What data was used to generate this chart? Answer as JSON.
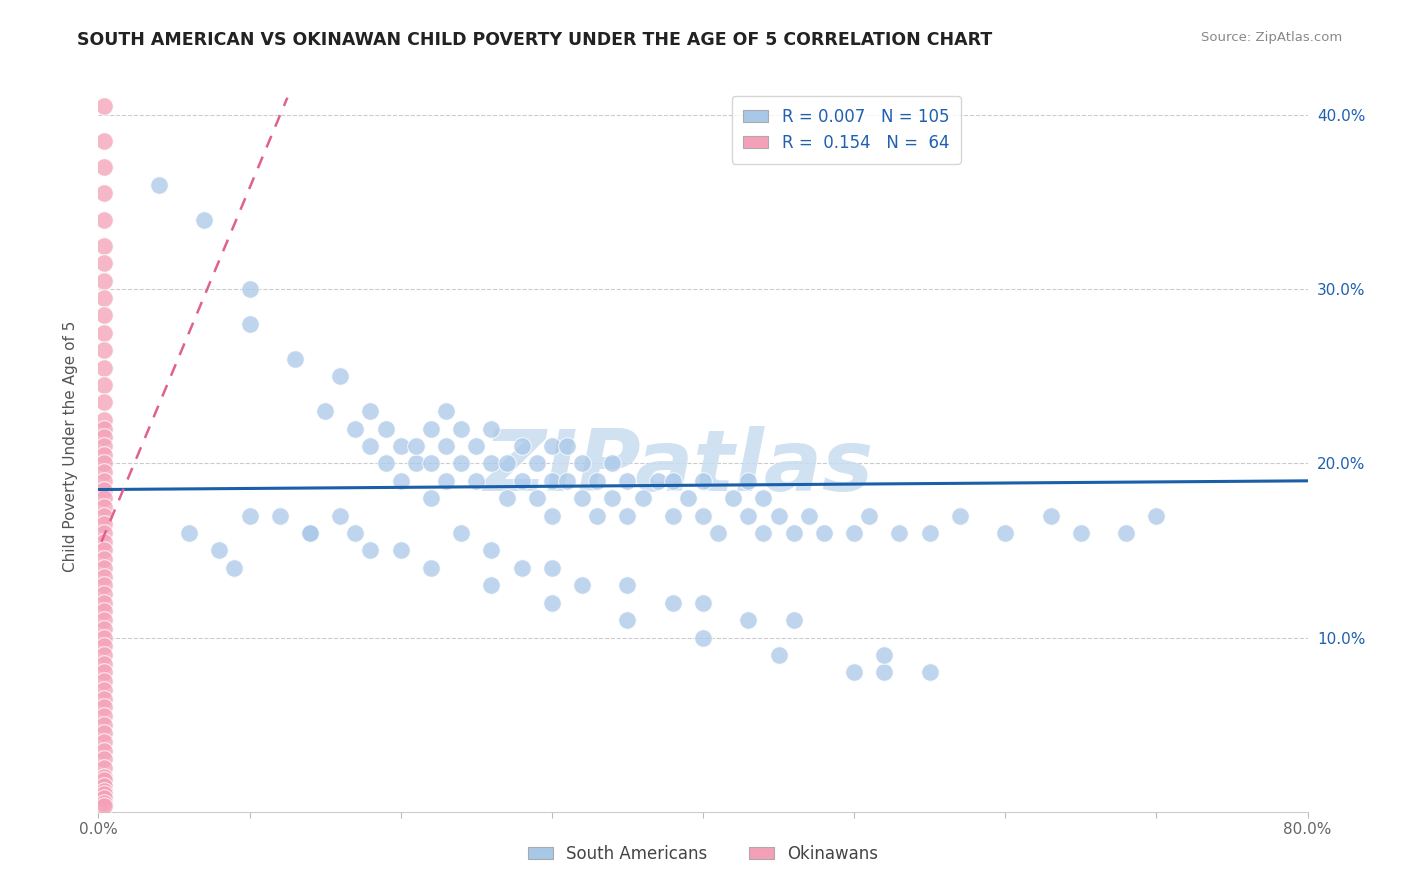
{
  "title": "SOUTH AMERICAN VS OKINAWAN CHILD POVERTY UNDER THE AGE OF 5 CORRELATION CHART",
  "source": "Source: ZipAtlas.com",
  "ylabel": "Child Poverty Under the Age of 5",
  "xlim": [
    0.0,
    0.8
  ],
  "ylim": [
    0.0,
    0.42
  ],
  "xtick_vals": [
    0.0,
    0.1,
    0.2,
    0.3,
    0.4,
    0.5,
    0.6,
    0.7,
    0.8
  ],
  "xtick_labels": [
    "0.0%",
    "",
    "",
    "",
    "",
    "",
    "",
    "",
    "80.0%"
  ],
  "ytick_vals": [
    0.0,
    0.1,
    0.2,
    0.3,
    0.4
  ],
  "ytick_labels_right": [
    "",
    "10.0%",
    "20.0%",
    "30.0%",
    "40.0%"
  ],
  "legend_r_blue": "0.007",
  "legend_n_blue": "105",
  "legend_r_pink": "0.154",
  "legend_n_pink": "64",
  "blue_color": "#a8c8e8",
  "pink_color": "#f4a0b8",
  "trend_blue_color": "#1a5fa8",
  "trend_pink_color": "#e06090",
  "legend_text_color": "#2060b0",
  "watermark_color": "#c8ddf0",
  "watermark_text": "ZIPatlas",
  "background_color": "#ffffff",
  "grid_color": "#cccccc",
  "blue_x": [
    0.04,
    0.07,
    0.1,
    0.1,
    0.13,
    0.15,
    0.16,
    0.17,
    0.18,
    0.18,
    0.19,
    0.19,
    0.2,
    0.2,
    0.21,
    0.21,
    0.22,
    0.22,
    0.22,
    0.23,
    0.23,
    0.23,
    0.24,
    0.24,
    0.25,
    0.25,
    0.26,
    0.26,
    0.27,
    0.27,
    0.28,
    0.28,
    0.29,
    0.29,
    0.3,
    0.3,
    0.3,
    0.31,
    0.31,
    0.32,
    0.32,
    0.33,
    0.33,
    0.34,
    0.34,
    0.35,
    0.35,
    0.36,
    0.37,
    0.38,
    0.38,
    0.39,
    0.4,
    0.4,
    0.41,
    0.42,
    0.43,
    0.43,
    0.44,
    0.44,
    0.45,
    0.46,
    0.47,
    0.48,
    0.5,
    0.51,
    0.52,
    0.53,
    0.55,
    0.57,
    0.6,
    0.63,
    0.65,
    0.68,
    0.7,
    0.06,
    0.08,
    0.09,
    0.12,
    0.14,
    0.16,
    0.17,
    0.2,
    0.24,
    0.26,
    0.28,
    0.3,
    0.32,
    0.35,
    0.38,
    0.4,
    0.43,
    0.46,
    0.5,
    0.52,
    0.55,
    0.1,
    0.14,
    0.18,
    0.22,
    0.26,
    0.3,
    0.35,
    0.4,
    0.45
  ],
  "blue_y": [
    0.36,
    0.34,
    0.28,
    0.3,
    0.26,
    0.23,
    0.25,
    0.22,
    0.21,
    0.23,
    0.2,
    0.22,
    0.19,
    0.21,
    0.2,
    0.21,
    0.18,
    0.2,
    0.22,
    0.19,
    0.21,
    0.23,
    0.2,
    0.22,
    0.19,
    0.21,
    0.2,
    0.22,
    0.18,
    0.2,
    0.19,
    0.21,
    0.18,
    0.2,
    0.19,
    0.21,
    0.17,
    0.19,
    0.21,
    0.18,
    0.2,
    0.19,
    0.17,
    0.18,
    0.2,
    0.17,
    0.19,
    0.18,
    0.19,
    0.17,
    0.19,
    0.18,
    0.17,
    0.19,
    0.16,
    0.18,
    0.17,
    0.19,
    0.16,
    0.18,
    0.17,
    0.16,
    0.17,
    0.16,
    0.16,
    0.17,
    0.08,
    0.16,
    0.16,
    0.17,
    0.16,
    0.17,
    0.16,
    0.16,
    0.17,
    0.16,
    0.15,
    0.14,
    0.17,
    0.16,
    0.17,
    0.16,
    0.15,
    0.16,
    0.15,
    0.14,
    0.14,
    0.13,
    0.13,
    0.12,
    0.12,
    0.11,
    0.11,
    0.08,
    0.09,
    0.08,
    0.17,
    0.16,
    0.15,
    0.14,
    0.13,
    0.12,
    0.11,
    0.1,
    0.09
  ],
  "pink_x": [
    0.004,
    0.004,
    0.004,
    0.004,
    0.004,
    0.004,
    0.004,
    0.004,
    0.004,
    0.004,
    0.004,
    0.004,
    0.004,
    0.004,
    0.004,
    0.004,
    0.004,
    0.004,
    0.004,
    0.004,
    0.004,
    0.004,
    0.004,
    0.004,
    0.004,
    0.004,
    0.004,
    0.004,
    0.004,
    0.004,
    0.004,
    0.004,
    0.004,
    0.004,
    0.004,
    0.004,
    0.004,
    0.004,
    0.004,
    0.004,
    0.004,
    0.004,
    0.004,
    0.004,
    0.004,
    0.004,
    0.004,
    0.004,
    0.004,
    0.004,
    0.004,
    0.004,
    0.004,
    0.004,
    0.004,
    0.004,
    0.004,
    0.004,
    0.004,
    0.004,
    0.004,
    0.004,
    0.004,
    0.004
  ],
  "pink_y": [
    0.405,
    0.385,
    0.37,
    0.355,
    0.34,
    0.325,
    0.315,
    0.305,
    0.295,
    0.285,
    0.275,
    0.265,
    0.255,
    0.245,
    0.235,
    0.225,
    0.22,
    0.215,
    0.21,
    0.205,
    0.2,
    0.195,
    0.19,
    0.185,
    0.18,
    0.175,
    0.17,
    0.165,
    0.16,
    0.155,
    0.15,
    0.145,
    0.14,
    0.135,
    0.13,
    0.125,
    0.12,
    0.115,
    0.11,
    0.105,
    0.1,
    0.095,
    0.09,
    0.085,
    0.08,
    0.075,
    0.07,
    0.065,
    0.06,
    0.055,
    0.05,
    0.045,
    0.04,
    0.035,
    0.03,
    0.025,
    0.02,
    0.018,
    0.015,
    0.012,
    0.01,
    0.008,
    0.005,
    0.003
  ],
  "blue_trend_x": [
    0.0,
    0.8
  ],
  "blue_trend_y": [
    0.185,
    0.19
  ],
  "pink_trend_x0": 0.002,
  "pink_trend_x1": 0.125,
  "pink_trend_y0": 0.155,
  "pink_trend_y1": 0.41
}
